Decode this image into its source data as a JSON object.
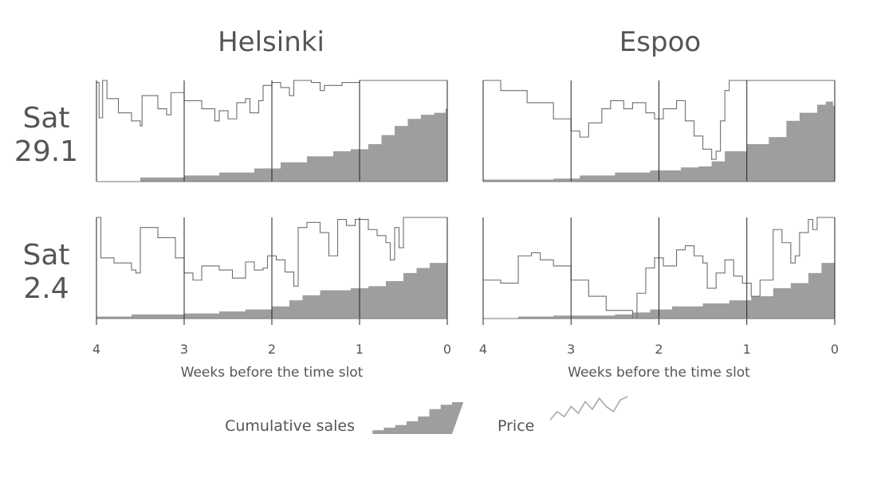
{
  "chart_data": {
    "type": "area",
    "columns": [
      "Helsinki",
      "Espoo"
    ],
    "rows": [
      "Sat 29.1",
      "Sat 2.4"
    ],
    "xlabel": "Weeks before the time slot",
    "xticks": [
      "4",
      "3",
      "2",
      "1",
      "0"
    ],
    "xlim": [
      4,
      0
    ],
    "legend": {
      "sales_label": "Cumulative sales",
      "price_label": "Price"
    },
    "series_names": [
      "Cumulative sales",
      "Price"
    ],
    "panels": [
      {
        "column": "Helsinki",
        "row": "Sat 29.1",
        "sales": [
          [
            4,
            0
          ],
          [
            3.5,
            0.04
          ],
          [
            3,
            0.06
          ],
          [
            2.6,
            0.09
          ],
          [
            2.2,
            0.13
          ],
          [
            1.9,
            0.19
          ],
          [
            1.6,
            0.25
          ],
          [
            1.3,
            0.3
          ],
          [
            1.1,
            0.32
          ],
          [
            0.9,
            0.37
          ],
          [
            0.75,
            0.46
          ],
          [
            0.6,
            0.55
          ],
          [
            0.45,
            0.62
          ],
          [
            0.3,
            0.66
          ],
          [
            0.15,
            0.68
          ],
          [
            0.02,
            0.72
          ],
          [
            0,
            0.72
          ]
        ],
        "price": [
          [
            4,
            0.98
          ],
          [
            3.97,
            0.63
          ],
          [
            3.93,
            1.0
          ],
          [
            3.88,
            0.82
          ],
          [
            3.75,
            0.68
          ],
          [
            3.6,
            0.6
          ],
          [
            3.5,
            0.55
          ],
          [
            3.48,
            0.85
          ],
          [
            3.3,
            0.72
          ],
          [
            3.2,
            0.66
          ],
          [
            3.15,
            0.88
          ],
          [
            3.0,
            0.8
          ],
          [
            2.8,
            0.72
          ],
          [
            2.65,
            0.6
          ],
          [
            2.6,
            0.7
          ],
          [
            2.5,
            0.62
          ],
          [
            2.4,
            0.78
          ],
          [
            2.3,
            0.82
          ],
          [
            2.25,
            0.68
          ],
          [
            2.15,
            0.8
          ],
          [
            2.1,
            0.95
          ],
          [
            2.0,
            0.98
          ],
          [
            1.9,
            0.93
          ],
          [
            1.8,
            0.85
          ],
          [
            1.75,
            1.0
          ],
          [
            1.55,
            0.98
          ],
          [
            1.45,
            0.9
          ],
          [
            1.4,
            0.95
          ],
          [
            1.2,
            0.98
          ],
          [
            1.0,
            1.0
          ],
          [
            0,
            1.0
          ]
        ]
      },
      {
        "column": "Espoo",
        "row": "Sat 29.1",
        "sales": [
          [
            4,
            0.02
          ],
          [
            3.5,
            0.02
          ],
          [
            3.2,
            0.03
          ],
          [
            2.9,
            0.06
          ],
          [
            2.5,
            0.09
          ],
          [
            2.1,
            0.11
          ],
          [
            1.75,
            0.14
          ],
          [
            1.55,
            0.15
          ],
          [
            1.4,
            0.2
          ],
          [
            1.25,
            0.3
          ],
          [
            1.0,
            0.37
          ],
          [
            0.75,
            0.44
          ],
          [
            0.55,
            0.6
          ],
          [
            0.4,
            0.68
          ],
          [
            0.2,
            0.76
          ],
          [
            0.1,
            0.79
          ],
          [
            0.02,
            0.75
          ],
          [
            0,
            0.74
          ]
        ],
        "price": [
          [
            4,
            1.0
          ],
          [
            3.8,
            0.9
          ],
          [
            3.5,
            0.78
          ],
          [
            3.2,
            0.62
          ],
          [
            3.0,
            0.5
          ],
          [
            2.9,
            0.44
          ],
          [
            2.8,
            0.58
          ],
          [
            2.65,
            0.72
          ],
          [
            2.55,
            0.8
          ],
          [
            2.4,
            0.72
          ],
          [
            2.3,
            0.78
          ],
          [
            2.15,
            0.68
          ],
          [
            2.05,
            0.62
          ],
          [
            1.95,
            0.72
          ],
          [
            1.8,
            0.8
          ],
          [
            1.7,
            0.6
          ],
          [
            1.6,
            0.45
          ],
          [
            1.5,
            0.32
          ],
          [
            1.4,
            0.22
          ],
          [
            1.35,
            0.3
          ],
          [
            1.3,
            0.6
          ],
          [
            1.25,
            0.9
          ],
          [
            1.2,
            1.0
          ],
          [
            0,
            1.0
          ]
        ]
      },
      {
        "column": "Helsinki",
        "row": "Sat 2.4",
        "sales": [
          [
            4,
            0.02
          ],
          [
            3.6,
            0.04
          ],
          [
            3.4,
            0.04
          ],
          [
            3.0,
            0.05
          ],
          [
            2.6,
            0.07
          ],
          [
            2.3,
            0.09
          ],
          [
            2.0,
            0.12
          ],
          [
            1.8,
            0.18
          ],
          [
            1.65,
            0.23
          ],
          [
            1.45,
            0.28
          ],
          [
            1.1,
            0.3
          ],
          [
            0.9,
            0.32
          ],
          [
            0.7,
            0.37
          ],
          [
            0.5,
            0.45
          ],
          [
            0.35,
            0.5
          ],
          [
            0.2,
            0.55
          ],
          [
            0,
            0.6
          ]
        ],
        "price": [
          [
            4,
            1.0
          ],
          [
            3.95,
            0.6
          ],
          [
            3.8,
            0.55
          ],
          [
            3.6,
            0.48
          ],
          [
            3.55,
            0.45
          ],
          [
            3.5,
            0.9
          ],
          [
            3.3,
            0.8
          ],
          [
            3.1,
            0.6
          ],
          [
            3.0,
            0.45
          ],
          [
            2.9,
            0.38
          ],
          [
            2.8,
            0.52
          ],
          [
            2.6,
            0.48
          ],
          [
            2.45,
            0.4
          ],
          [
            2.3,
            0.56
          ],
          [
            2.2,
            0.48
          ],
          [
            2.1,
            0.5
          ],
          [
            2.05,
            0.62
          ],
          [
            1.95,
            0.58
          ],
          [
            1.85,
            0.46
          ],
          [
            1.75,
            0.32
          ],
          [
            1.7,
            0.9
          ],
          [
            1.6,
            0.95
          ],
          [
            1.45,
            0.85
          ],
          [
            1.35,
            0.62
          ],
          [
            1.25,
            0.98
          ],
          [
            1.15,
            0.92
          ],
          [
            1.05,
            0.98
          ],
          [
            0.9,
            0.88
          ],
          [
            0.8,
            0.82
          ],
          [
            0.7,
            0.75
          ],
          [
            0.65,
            0.58
          ],
          [
            0.6,
            0.9
          ],
          [
            0.55,
            0.7
          ],
          [
            0.5,
            1.0
          ],
          [
            0,
            1.0
          ]
        ]
      },
      {
        "column": "Espoo",
        "row": "Sat 2.4",
        "sales": [
          [
            4,
            0
          ],
          [
            3.6,
            0.02
          ],
          [
            3.2,
            0.03
          ],
          [
            2.8,
            0.03
          ],
          [
            2.5,
            0.04
          ],
          [
            2.3,
            0.06
          ],
          [
            2.1,
            0.09
          ],
          [
            1.85,
            0.12
          ],
          [
            1.5,
            0.15
          ],
          [
            1.2,
            0.18
          ],
          [
            0.95,
            0.22
          ],
          [
            0.7,
            0.3
          ],
          [
            0.5,
            0.35
          ],
          [
            0.3,
            0.45
          ],
          [
            0.15,
            0.55
          ],
          [
            0,
            0.6
          ]
        ],
        "price": [
          [
            4,
            0.38
          ],
          [
            3.8,
            0.35
          ],
          [
            3.6,
            0.62
          ],
          [
            3.45,
            0.65
          ],
          [
            3.35,
            0.58
          ],
          [
            3.2,
            0.52
          ],
          [
            3.0,
            0.38
          ],
          [
            2.8,
            0.22
          ],
          [
            2.6,
            0.08
          ],
          [
            2.3,
            0.0
          ],
          [
            2.25,
            0.25
          ],
          [
            2.15,
            0.5
          ],
          [
            2.05,
            0.6
          ],
          [
            1.95,
            0.52
          ],
          [
            1.8,
            0.68
          ],
          [
            1.7,
            0.72
          ],
          [
            1.6,
            0.62
          ],
          [
            1.5,
            0.55
          ],
          [
            1.45,
            0.3
          ],
          [
            1.35,
            0.45
          ],
          [
            1.25,
            0.58
          ],
          [
            1.15,
            0.42
          ],
          [
            1.05,
            0.35
          ],
          [
            0.95,
            0.22
          ],
          [
            0.85,
            0.38
          ],
          [
            0.7,
            0.88
          ],
          [
            0.6,
            0.75
          ],
          [
            0.5,
            0.55
          ],
          [
            0.45,
            0.62
          ],
          [
            0.4,
            0.85
          ],
          [
            0.3,
            0.98
          ],
          [
            0.25,
            0.88
          ],
          [
            0.2,
            1.0
          ],
          [
            0,
            1.0
          ]
        ]
      }
    ],
    "legend_sales_icon": [
      0,
      0.12,
      0.2,
      0.28,
      0.4,
      0.55,
      0.78,
      0.92,
      1.0
    ],
    "legend_price_icon": [
      0.3,
      0.55,
      0.4,
      0.7,
      0.5,
      0.85,
      0.62,
      0.95,
      0.7,
      0.55,
      0.9,
      1.0
    ]
  }
}
